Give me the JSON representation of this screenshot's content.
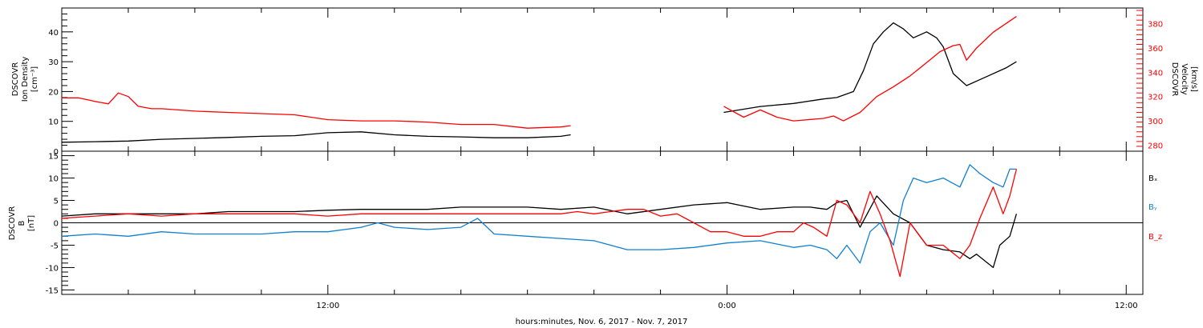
{
  "figure": {
    "xlabel": "hours:minutes, Nov.  6, 2017 - Nov.  7, 2017"
  },
  "chart_data": [
    {
      "type": "line",
      "panel": "top",
      "ylabel_left": [
        "DSCOVR",
        "Ion Density",
        "[cm⁻³]"
      ],
      "ylabel_right": [
        "DSCOVR",
        "Velocity",
        "[km/s]"
      ],
      "x_unit": "hours since 2017-11-06 00:00",
      "xlim": [
        4.0,
        36.5
      ],
      "x_tick_labels": [
        {
          "x": 12,
          "label": "12:00"
        },
        {
          "x": 24,
          "label": "0:00"
        },
        {
          "x": 36,
          "label": "12:00"
        }
      ],
      "ylim_left": [
        0,
        48
      ],
      "ylim_right": [
        275,
        393
      ],
      "y_ticks_left": [
        0,
        10,
        20,
        30,
        40
      ],
      "y_ticks_right": [
        280,
        300,
        320,
        340,
        360,
        380
      ],
      "grid": false,
      "colors": {
        "density": "#000000",
        "velocity": "#ff0000"
      },
      "series": [
        {
          "key": "density",
          "axis": "left",
          "color": "#000000",
          "x": [
            4.0,
            5.0,
            6.0,
            7.0,
            8.0,
            9.0,
            10.0,
            11.0,
            12.0,
            13.0,
            14.0,
            15.0,
            16.0,
            17.0,
            18.0,
            19.0,
            19.3,
            null,
            23.9,
            25.0,
            26.0,
            26.9,
            27.3,
            27.8,
            28.1,
            28.4,
            28.7,
            29.0,
            29.3,
            29.6,
            30.0,
            30.3,
            30.5,
            30.8,
            31.2,
            31.8,
            32.4,
            32.7
          ],
          "y": [
            3.0,
            3.2,
            3.4,
            4.0,
            4.3,
            4.6,
            5.0,
            5.2,
            6.2,
            6.5,
            5.5,
            5.0,
            4.8,
            4.5,
            4.5,
            5.0,
            5.5,
            null,
            13.0,
            15.0,
            16.0,
            17.5,
            18.0,
            20.0,
            27.0,
            36.0,
            40.0,
            43.0,
            41.0,
            38.0,
            40.0,
            38.0,
            35.0,
            26.0,
            22.0,
            25.0,
            28.0,
            30.0
          ]
        },
        {
          "key": "velocity",
          "axis": "right",
          "color": "#ff0000",
          "x": [
            4.0,
            4.5,
            5.0,
            5.4,
            5.7,
            6.0,
            6.3,
            6.7,
            7.0,
            8.0,
            9.0,
            10.0,
            11.0,
            12.0,
            13.0,
            14.0,
            15.0,
            16.0,
            17.0,
            18.0,
            19.0,
            19.3,
            null,
            23.9,
            24.5,
            25.0,
            25.5,
            26.0,
            26.9,
            27.2,
            27.5,
            28.0,
            28.5,
            29.0,
            29.5,
            30.0,
            30.4,
            30.8,
            31.0,
            31.2,
            31.5,
            32.0,
            32.7
          ],
          "y": [
            319,
            319,
            316,
            314,
            323,
            320,
            312,
            310,
            310,
            308,
            307,
            306,
            305,
            301,
            300,
            300,
            299,
            297,
            297,
            294,
            295,
            296,
            null,
            312,
            303,
            309,
            303,
            300,
            302,
            304,
            300,
            307,
            320,
            328,
            337,
            348,
            357,
            362,
            363,
            350,
            360,
            373,
            386
          ]
        }
      ]
    },
    {
      "type": "line",
      "panel": "bottom",
      "ylabel_left": [
        "DSCOVR",
        "B",
        "[nT]"
      ],
      "x_unit": "hours since 2017-11-06 00:00",
      "xlim": [
        4.0,
        36.5
      ],
      "ylim": [
        -16,
        16
      ],
      "y_ticks": [
        -15,
        -10,
        -5,
        0,
        5,
        10,
        15
      ],
      "zero_line": true,
      "grid": false,
      "legend_position": "right, stacked",
      "colors": {
        "Bx": "#000000",
        "By": "#1080d0",
        "Bz": "#ff0000"
      },
      "series": [
        {
          "key": "bx",
          "name": "Bₓ",
          "color": "#000000",
          "x": [
            4.0,
            5.0,
            6.0,
            7.0,
            8.0,
            9.0,
            10.0,
            11.0,
            12.0,
            13.0,
            14.0,
            15.0,
            16.0,
            17.0,
            18.0,
            19.0,
            20.0,
            21.0,
            22.0,
            23.0,
            24.0,
            25.0,
            26.0,
            26.5,
            27.0,
            27.3,
            27.6,
            28.0,
            28.5,
            29.0,
            29.5,
            30.0,
            30.5,
            31.0,
            31.3,
            31.5,
            32.0,
            32.2,
            32.5,
            32.7
          ],
          "y": [
            1.5,
            2.0,
            2.0,
            2.0,
            2.0,
            2.5,
            2.5,
            2.5,
            2.8,
            3.0,
            3.0,
            3.0,
            3.5,
            3.5,
            3.5,
            3.0,
            3.5,
            2.0,
            3.0,
            4.0,
            4.5,
            3.0,
            3.5,
            3.5,
            3.0,
            4.5,
            5.0,
            -1.0,
            6.0,
            2.0,
            0.0,
            -5.0,
            -6.0,
            -6.5,
            -8.0,
            -7.0,
            -10.0,
            -5.0,
            -3.0,
            2.0
          ]
        },
        {
          "key": "by",
          "name": "Bᵧ",
          "color": "#1080d0",
          "x": [
            4.0,
            5.0,
            6.0,
            7.0,
            8.0,
            9.0,
            10.0,
            11.0,
            12.0,
            13.0,
            13.5,
            14.0,
            15.0,
            16.0,
            16.5,
            17.0,
            18.0,
            19.0,
            20.0,
            21.0,
            22.0,
            23.0,
            24.0,
            25.0,
            26.0,
            26.5,
            27.0,
            27.3,
            27.6,
            28.0,
            28.3,
            28.6,
            29.0,
            29.3,
            29.6,
            30.0,
            30.5,
            31.0,
            31.3,
            31.6,
            32.0,
            32.3,
            32.5,
            32.7
          ],
          "y": [
            -3.0,
            -2.5,
            -3.0,
            -2.0,
            -2.5,
            -2.5,
            -2.5,
            -2.0,
            -2.0,
            -1.0,
            0.0,
            -1.0,
            -1.5,
            -1.0,
            1.0,
            -2.5,
            -3.0,
            -3.5,
            -4.0,
            -6.0,
            -6.0,
            -5.5,
            -4.5,
            -4.0,
            -5.5,
            -5.0,
            -6.0,
            -8.0,
            -5.0,
            -9.0,
            -2.0,
            0.0,
            -5.0,
            5.0,
            10.0,
            9.0,
            10.0,
            8.0,
            13.0,
            11.0,
            9.0,
            8.0,
            12.0,
            12.0
          ]
        },
        {
          "key": "bz",
          "name": "B_z",
          "color": "#ff0000",
          "x": [
            4.0,
            5.0,
            6.0,
            7.0,
            8.0,
            9.0,
            10.0,
            11.0,
            12.0,
            13.0,
            14.0,
            15.0,
            16.0,
            17.0,
            18.0,
            19.0,
            19.5,
            20.0,
            21.0,
            21.5,
            22.0,
            22.5,
            23.0,
            23.5,
            24.0,
            24.5,
            25.0,
            25.5,
            26.0,
            26.3,
            26.6,
            27.0,
            27.3,
            27.6,
            28.0,
            28.3,
            28.6,
            28.9,
            29.2,
            29.5,
            30.0,
            30.5,
            31.0,
            31.3,
            31.6,
            32.0,
            32.3,
            32.5,
            32.7
          ],
          "y": [
            1.0,
            1.5,
            2.0,
            1.5,
            2.0,
            2.0,
            2.0,
            2.0,
            1.5,
            2.0,
            2.0,
            2.0,
            2.0,
            2.0,
            2.0,
            2.0,
            2.5,
            2.0,
            3.0,
            3.0,
            1.5,
            2.0,
            0.0,
            -2.0,
            -2.0,
            -3.0,
            -3.0,
            -2.0,
            -2.0,
            0.0,
            -1.0,
            -3.0,
            5.0,
            4.0,
            0.0,
            7.0,
            2.0,
            -4.0,
            -12.0,
            0.0,
            -5.0,
            -5.0,
            -8.0,
            -5.0,
            1.0,
            8.0,
            2.0,
            6.0,
            12.0
          ]
        }
      ]
    }
  ]
}
